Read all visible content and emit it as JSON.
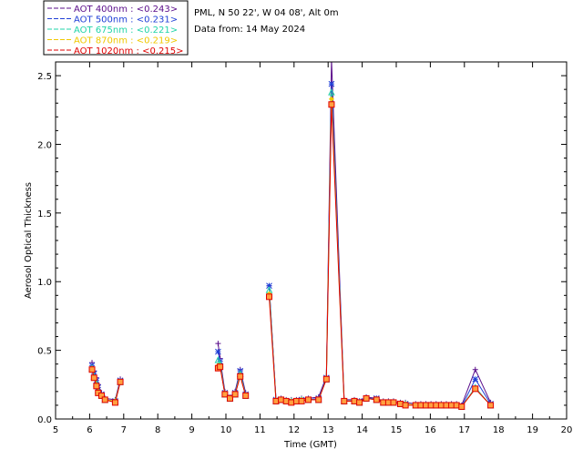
{
  "header": {
    "site_line": "PML, N 50 22', W 04 08', Alt 0m",
    "date_line": "Data from: 14 May 2024"
  },
  "chart_data": {
    "type": "line",
    "title": "",
    "xlabel": "Time (GMT)",
    "ylabel": "Aerosol Optical Thickness",
    "xlim": [
      5,
      20
    ],
    "ylim": [
      0,
      2.6
    ],
    "xticks": [
      5,
      6,
      7,
      8,
      9,
      10,
      11,
      12,
      13,
      14,
      15,
      16,
      17,
      18,
      19,
      20
    ],
    "yticks": [
      0.0,
      0.5,
      1.0,
      1.5,
      2.0,
      2.5
    ],
    "ytick_labels": [
      "0.0",
      "0.5",
      "1.0",
      "1.5",
      "2.0",
      "2.5"
    ],
    "grid": false,
    "legend_position": "top-left (outside plot)",
    "series": [
      {
        "name": "AOT  400nm : <0.243>",
        "color": "#5a0d8a",
        "marker": "plus",
        "points": [
          [
            6.07,
            0.41
          ],
          [
            6.13,
            0.35
          ],
          [
            6.2,
            0.3
          ],
          [
            6.25,
            0.25
          ],
          [
            6.35,
            0.19
          ],
          [
            6.45,
            0.15
          ],
          [
            6.75,
            0.14
          ],
          [
            6.9,
            0.29
          ],
          [
            9.77,
            0.55
          ],
          [
            9.83,
            0.44
          ],
          [
            9.97,
            0.2
          ],
          [
            10.12,
            0.16
          ],
          [
            10.27,
            0.2
          ],
          [
            10.42,
            0.36
          ],
          [
            10.58,
            0.19
          ],
          [
            11.27,
            0.97
          ],
          [
            11.47,
            0.14
          ],
          [
            11.62,
            0.15
          ],
          [
            11.77,
            0.14
          ],
          [
            11.92,
            0.14
          ],
          [
            12.07,
            0.14
          ],
          [
            12.22,
            0.15
          ],
          [
            12.42,
            0.15
          ],
          [
            12.72,
            0.16
          ],
          [
            12.95,
            0.31
          ],
          [
            13.1,
            2.62
          ],
          [
            13.47,
            0.14
          ],
          [
            13.77,
            0.14
          ],
          [
            13.92,
            0.13
          ],
          [
            14.12,
            0.16
          ],
          [
            14.42,
            0.15
          ],
          [
            14.62,
            0.13
          ],
          [
            14.77,
            0.13
          ],
          [
            14.92,
            0.13
          ],
          [
            15.12,
            0.12
          ],
          [
            15.27,
            0.12
          ],
          [
            15.57,
            0.11
          ],
          [
            15.72,
            0.11
          ],
          [
            15.87,
            0.11
          ],
          [
            16.02,
            0.11
          ],
          [
            16.17,
            0.11
          ],
          [
            16.32,
            0.11
          ],
          [
            16.47,
            0.11
          ],
          [
            16.62,
            0.11
          ],
          [
            16.77,
            0.11
          ],
          [
            16.92,
            0.1
          ],
          [
            17.32,
            0.36
          ],
          [
            17.77,
            0.12
          ]
        ]
      },
      {
        "name": "AOT  500nm : <0.231>",
        "color": "#1f3fd6",
        "marker": "star",
        "points": [
          [
            6.07,
            0.39
          ],
          [
            6.13,
            0.33
          ],
          [
            6.2,
            0.28
          ],
          [
            6.25,
            0.23
          ],
          [
            6.35,
            0.18
          ],
          [
            6.45,
            0.14
          ],
          [
            6.75,
            0.13
          ],
          [
            6.9,
            0.28
          ],
          [
            9.77,
            0.49
          ],
          [
            9.83,
            0.42
          ],
          [
            9.97,
            0.19
          ],
          [
            10.12,
            0.15
          ],
          [
            10.27,
            0.19
          ],
          [
            10.42,
            0.35
          ],
          [
            10.58,
            0.18
          ],
          [
            11.27,
            0.97
          ],
          [
            11.47,
            0.14
          ],
          [
            11.62,
            0.14
          ],
          [
            11.77,
            0.13
          ],
          [
            11.92,
            0.13
          ],
          [
            12.07,
            0.13
          ],
          [
            12.22,
            0.14
          ],
          [
            12.42,
            0.14
          ],
          [
            12.72,
            0.15
          ],
          [
            12.95,
            0.3
          ],
          [
            13.1,
            2.44
          ],
          [
            13.47,
            0.13
          ],
          [
            13.77,
            0.13
          ],
          [
            13.92,
            0.13
          ],
          [
            14.12,
            0.15
          ],
          [
            14.42,
            0.15
          ],
          [
            14.62,
            0.12
          ],
          [
            14.77,
            0.12
          ],
          [
            14.92,
            0.12
          ],
          [
            15.12,
            0.11
          ],
          [
            15.27,
            0.11
          ],
          [
            15.57,
            0.1
          ],
          [
            15.72,
            0.1
          ],
          [
            15.87,
            0.1
          ],
          [
            16.02,
            0.1
          ],
          [
            16.17,
            0.1
          ],
          [
            16.32,
            0.1
          ],
          [
            16.47,
            0.1
          ],
          [
            16.62,
            0.1
          ],
          [
            16.77,
            0.1
          ],
          [
            16.92,
            0.09
          ],
          [
            17.32,
            0.29
          ],
          [
            17.77,
            0.11
          ]
        ]
      },
      {
        "name": "AOT  675nm : <0.221>",
        "color": "#22d4a8",
        "marker": "triangle",
        "points": [
          [
            6.07,
            0.37
          ],
          [
            6.13,
            0.31
          ],
          [
            6.2,
            0.26
          ],
          [
            6.25,
            0.21
          ],
          [
            6.35,
            0.17
          ],
          [
            6.45,
            0.14
          ],
          [
            6.75,
            0.13
          ],
          [
            6.9,
            0.27
          ],
          [
            9.77,
            0.43
          ],
          [
            9.83,
            0.4
          ],
          [
            9.97,
            0.18
          ],
          [
            10.12,
            0.15
          ],
          [
            10.27,
            0.18
          ],
          [
            10.42,
            0.33
          ],
          [
            10.58,
            0.17
          ],
          [
            11.27,
            0.94
          ],
          [
            11.47,
            0.13
          ],
          [
            11.62,
            0.14
          ],
          [
            11.77,
            0.13
          ],
          [
            11.92,
            0.13
          ],
          [
            12.07,
            0.13
          ],
          [
            12.22,
            0.14
          ],
          [
            12.42,
            0.14
          ],
          [
            12.72,
            0.14
          ],
          [
            12.95,
            0.29
          ],
          [
            13.1,
            2.38
          ],
          [
            13.47,
            0.13
          ],
          [
            13.77,
            0.13
          ],
          [
            13.92,
            0.12
          ],
          [
            14.12,
            0.15
          ],
          [
            14.42,
            0.14
          ],
          [
            14.62,
            0.12
          ],
          [
            14.77,
            0.12
          ],
          [
            14.92,
            0.12
          ],
          [
            15.12,
            0.11
          ],
          [
            15.27,
            0.11
          ],
          [
            15.57,
            0.1
          ],
          [
            15.72,
            0.1
          ],
          [
            15.87,
            0.1
          ],
          [
            16.02,
            0.1
          ],
          [
            16.17,
            0.1
          ],
          [
            16.32,
            0.1
          ],
          [
            16.47,
            0.1
          ],
          [
            16.62,
            0.1
          ],
          [
            16.77,
            0.1
          ],
          [
            16.92,
            0.09
          ],
          [
            17.32,
            0.23
          ],
          [
            17.77,
            0.1
          ]
        ]
      },
      {
        "name": "AOT  870nm : <0.219>",
        "color": "#f0c800",
        "marker": "diamond",
        "points": [
          [
            6.07,
            0.37
          ],
          [
            6.13,
            0.3
          ],
          [
            6.2,
            0.25
          ],
          [
            6.25,
            0.2
          ],
          [
            6.35,
            0.17
          ],
          [
            6.45,
            0.14
          ],
          [
            6.75,
            0.13
          ],
          [
            6.9,
            0.27
          ],
          [
            9.77,
            0.39
          ],
          [
            9.83,
            0.39
          ],
          [
            9.97,
            0.18
          ],
          [
            10.12,
            0.15
          ],
          [
            10.27,
            0.18
          ],
          [
            10.42,
            0.32
          ],
          [
            10.58,
            0.17
          ],
          [
            11.27,
            0.91
          ],
          [
            11.47,
            0.13
          ],
          [
            11.62,
            0.14
          ],
          [
            11.77,
            0.13
          ],
          [
            11.92,
            0.13
          ],
          [
            12.07,
            0.13
          ],
          [
            12.22,
            0.14
          ],
          [
            12.42,
            0.14
          ],
          [
            12.72,
            0.14
          ],
          [
            12.95,
            0.29
          ],
          [
            13.1,
            2.33
          ],
          [
            13.47,
            0.13
          ],
          [
            13.77,
            0.13
          ],
          [
            13.92,
            0.12
          ],
          [
            14.12,
            0.15
          ],
          [
            14.42,
            0.14
          ],
          [
            14.62,
            0.12
          ],
          [
            14.77,
            0.12
          ],
          [
            14.92,
            0.12
          ],
          [
            15.12,
            0.11
          ],
          [
            15.27,
            0.11
          ],
          [
            15.57,
            0.1
          ],
          [
            15.72,
            0.1
          ],
          [
            15.87,
            0.1
          ],
          [
            16.02,
            0.1
          ],
          [
            16.17,
            0.1
          ],
          [
            16.32,
            0.1
          ],
          [
            16.47,
            0.1
          ],
          [
            16.62,
            0.1
          ],
          [
            16.77,
            0.1
          ],
          [
            16.92,
            0.09
          ],
          [
            17.32,
            0.22
          ],
          [
            17.77,
            0.1
          ]
        ]
      },
      {
        "name": "AOT 1020nm : <0.215>",
        "color": "#e00000",
        "marker": "square",
        "points": [
          [
            6.07,
            0.36
          ],
          [
            6.13,
            0.3
          ],
          [
            6.2,
            0.24
          ],
          [
            6.25,
            0.19
          ],
          [
            6.35,
            0.17
          ],
          [
            6.45,
            0.14
          ],
          [
            6.75,
            0.12
          ],
          [
            6.9,
            0.27
          ],
          [
            9.77,
            0.37
          ],
          [
            9.83,
            0.38
          ],
          [
            9.97,
            0.18
          ],
          [
            10.12,
            0.15
          ],
          [
            10.27,
            0.18
          ],
          [
            10.42,
            0.31
          ],
          [
            10.58,
            0.17
          ],
          [
            11.27,
            0.89
          ],
          [
            11.47,
            0.13
          ],
          [
            11.62,
            0.14
          ],
          [
            11.77,
            0.13
          ],
          [
            11.92,
            0.12
          ],
          [
            12.07,
            0.13
          ],
          [
            12.22,
            0.13
          ],
          [
            12.42,
            0.14
          ],
          [
            12.72,
            0.14
          ],
          [
            12.95,
            0.29
          ],
          [
            13.1,
            2.29
          ],
          [
            13.47,
            0.13
          ],
          [
            13.77,
            0.13
          ],
          [
            13.92,
            0.12
          ],
          [
            14.12,
            0.15
          ],
          [
            14.42,
            0.14
          ],
          [
            14.62,
            0.12
          ],
          [
            14.77,
            0.12
          ],
          [
            14.92,
            0.12
          ],
          [
            15.12,
            0.11
          ],
          [
            15.27,
            0.1
          ],
          [
            15.57,
            0.1
          ],
          [
            15.72,
            0.1
          ],
          [
            15.87,
            0.1
          ],
          [
            16.02,
            0.1
          ],
          [
            16.17,
            0.1
          ],
          [
            16.32,
            0.1
          ],
          [
            16.47,
            0.1
          ],
          [
            16.62,
            0.1
          ],
          [
            16.77,
            0.1
          ],
          [
            16.92,
            0.09
          ],
          [
            17.32,
            0.22
          ],
          [
            17.77,
            0.1
          ]
        ]
      }
    ]
  }
}
